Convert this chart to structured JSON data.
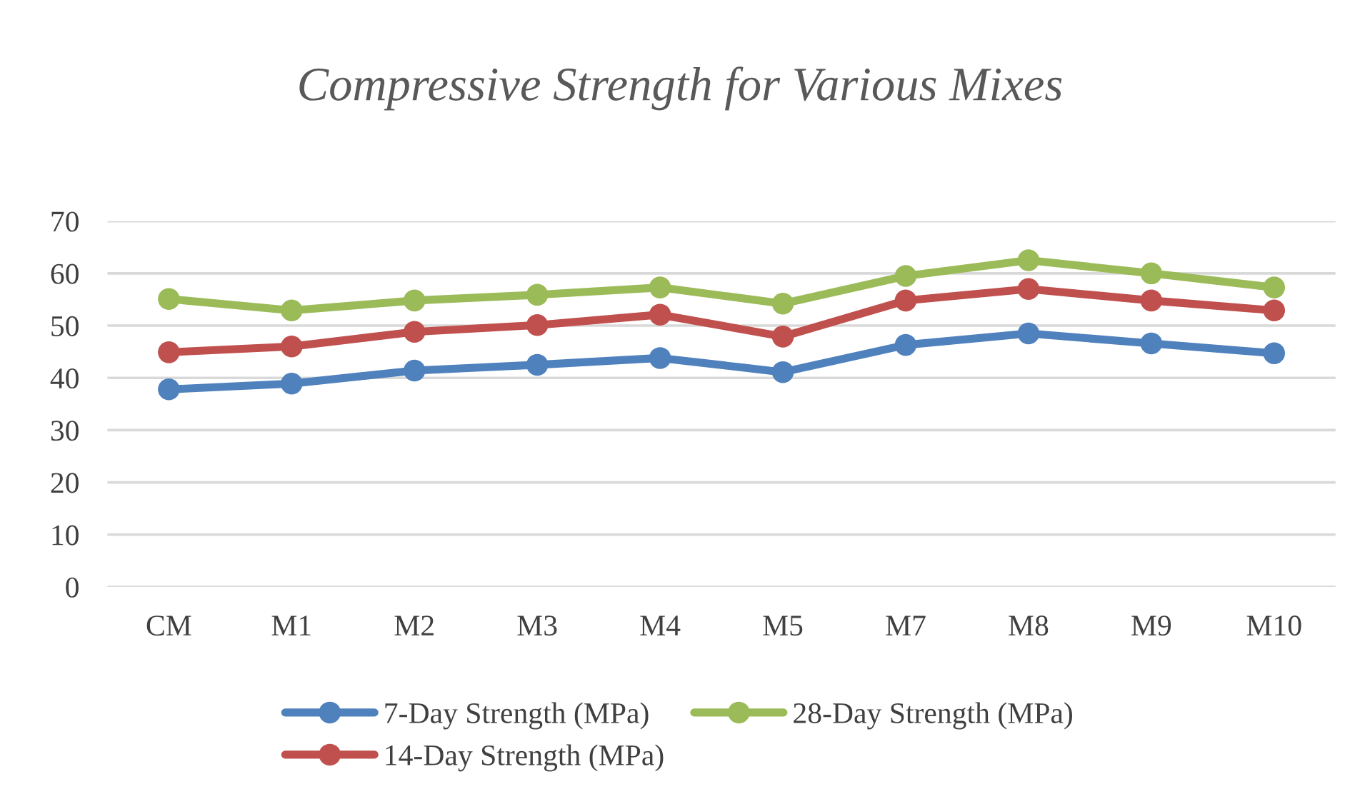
{
  "chart_data": {
    "type": "line",
    "title": "Compressive Strength for Various Mixes",
    "categories": [
      "CM",
      "M1",
      "M2",
      "M3",
      "M4",
      "M5",
      "M7",
      "M8",
      "M9",
      "M10"
    ],
    "series": [
      {
        "name": "7-Day Strength (MPa)",
        "color": "#4f81bd",
        "values": [
          37.8,
          38.9,
          41.4,
          42.5,
          43.8,
          41.1,
          46.3,
          48.5,
          46.6,
          44.7
        ]
      },
      {
        "name": "14-Day Strength (MPa)",
        "color": "#c0504d",
        "values": [
          44.9,
          46.0,
          48.8,
          50.1,
          52.1,
          47.9,
          54.8,
          57.0,
          54.8,
          52.9
        ]
      },
      {
        "name": "28-Day Strength (MPa)",
        "color": "#9bbb59",
        "values": [
          55.1,
          52.9,
          54.8,
          55.9,
          57.3,
          54.2,
          59.5,
          62.5,
          60.0,
          57.3
        ]
      }
    ],
    "ylim": [
      0,
      70
    ],
    "yticks": [
      0,
      10,
      20,
      30,
      40,
      50,
      60,
      70
    ],
    "grid": "y",
    "legend": "bottom",
    "marker": "circle",
    "line_style": "solid"
  }
}
